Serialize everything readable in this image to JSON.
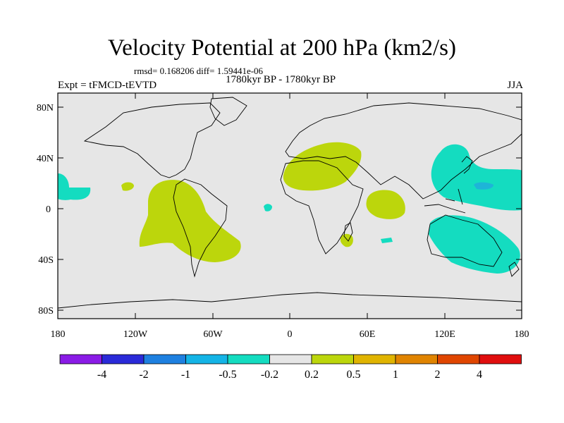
{
  "header": {
    "title": "Velocity Potential at 200 hPa (km2/s)",
    "stats": "rmsd= 0.168206 diff= 1.59441e-06",
    "subtitle": "1780kyr BP - 1780kyr BP",
    "left_label": "Expt = tFMCD-tEVTD",
    "right_label": "JJA"
  },
  "axes": {
    "lat_ticks": [
      "80N",
      "40N",
      "0",
      "40S",
      "80S"
    ],
    "lon_ticks": [
      "180",
      "120W",
      "60W",
      "0",
      "60E",
      "120E",
      "180"
    ]
  },
  "colorbar": {
    "colors": [
      "#8a1be6",
      "#2a2ad8",
      "#1e80e0",
      "#14b4e6",
      "#14dcc0",
      "#e6e6e6",
      "#bcd60c",
      "#e0b400",
      "#e08400",
      "#e04600",
      "#e00e0e"
    ],
    "labels": [
      "-4",
      "-2",
      "-1",
      "-0.5",
      "-0.2",
      "0.2",
      "0.5",
      "1",
      "2",
      "4"
    ]
  },
  "colors": {
    "background_field": "#e6e6e6",
    "positive_anomaly": "#bcd60c",
    "negative_anomaly": "#14dcc0",
    "negative_core": "#1eb4d8",
    "coastline": "#000000"
  }
}
